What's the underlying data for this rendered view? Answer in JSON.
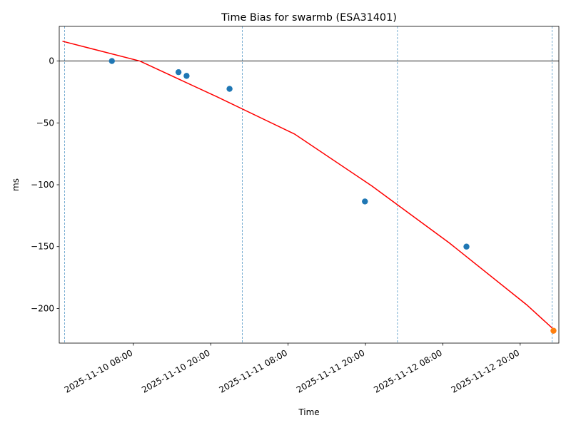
{
  "chart_data": {
    "type": "scatter",
    "title": "Time Bias for swarmb (ESA31401)",
    "xlabel": "Time",
    "ylabel": "ms",
    "xlim": [
      "2025-11-09 20:30",
      "2025-11-13 02:00"
    ],
    "ylim": [
      -228,
      28
    ],
    "x_ticks": [
      {
        "value": "2025-11-10 08:00",
        "label": "2025-11-10 08:00"
      },
      {
        "value": "2025-11-10 20:00",
        "label": "2025-11-10 20:00"
      },
      {
        "value": "2025-11-11 08:00",
        "label": "2025-11-11 08:00"
      },
      {
        "value": "2025-11-11 20:00",
        "label": "2025-11-11 20:00"
      },
      {
        "value": "2025-11-12 08:00",
        "label": "2025-11-12 08:00"
      },
      {
        "value": "2025-11-12 20:00",
        "label": "2025-11-12 20:00"
      }
    ],
    "y_ticks": [
      {
        "value": 0,
        "label": "0"
      },
      {
        "value": -50,
        "label": "−50"
      },
      {
        "value": -100,
        "label": "−100"
      },
      {
        "value": -150,
        "label": "−150"
      },
      {
        "value": -200,
        "label": "−200"
      }
    ],
    "grid": false,
    "reference_hline": 0,
    "vlines": [
      "2025-11-09 21:20",
      "2025-11-11 00:54",
      "2025-11-12 00:58",
      "2025-11-13 00:56"
    ],
    "series": [
      {
        "kind": "scatter",
        "color": "#1f77b4",
        "points": [
          {
            "x": "2025-11-10 04:40",
            "y": 0
          },
          {
            "x": "2025-11-10 15:00",
            "y": -9
          },
          {
            "x": "2025-11-10 16:15",
            "y": -12
          },
          {
            "x": "2025-11-10 22:55",
            "y": -22.5
          },
          {
            "x": "2025-11-11 19:55",
            "y": -113.5
          },
          {
            "x": "2025-11-12 11:40",
            "y": -150
          }
        ]
      },
      {
        "kind": "scatter",
        "color": "#ff7f0e",
        "points": [
          {
            "x": "2025-11-13 01:10",
            "y": -218
          }
        ]
      },
      {
        "kind": "line",
        "color": "#ff0000",
        "points": [
          {
            "x": "2025-11-09 21:00",
            "y": 16
          },
          {
            "x": "2025-11-10 09:00",
            "y": 0
          },
          {
            "x": "2025-11-10 21:00",
            "y": -29
          },
          {
            "x": "2025-11-11 09:00",
            "y": -59
          },
          {
            "x": "2025-11-11 21:00",
            "y": -101
          },
          {
            "x": "2025-11-12 09:00",
            "y": -147
          },
          {
            "x": "2025-11-12 21:00",
            "y": -197
          },
          {
            "x": "2025-11-13 01:00",
            "y": -216
          }
        ]
      }
    ]
  }
}
